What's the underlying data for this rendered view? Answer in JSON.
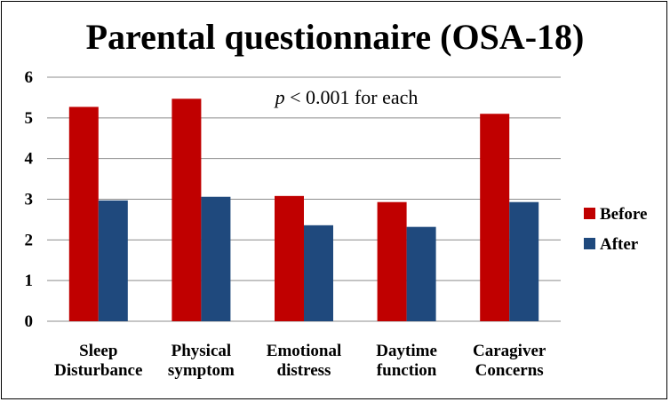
{
  "chart_data": {
    "type": "bar",
    "title": "Parental questionnaire (OSA-18)",
    "annotation": {
      "italic": "p",
      "rest": " < 0.001 for each"
    },
    "categories": [
      [
        "Sleep",
        "Disturbance"
      ],
      [
        "Physical",
        "symptom"
      ],
      [
        "Emotional",
        "distress"
      ],
      [
        "Daytime",
        "function"
      ],
      [
        "Caragiver",
        "Concerns"
      ]
    ],
    "series": [
      {
        "name": "Before",
        "color": "#c00000",
        "values": [
          5.27,
          5.47,
          3.08,
          2.93,
          5.1
        ]
      },
      {
        "name": "After",
        "color": "#1f497d",
        "values": [
          2.97,
          3.06,
          2.36,
          2.32,
          2.93
        ]
      }
    ],
    "ylim": [
      0,
      6
    ],
    "yticks": [
      "0",
      "1",
      "2",
      "3",
      "4",
      "5",
      "6"
    ],
    "grid": true,
    "legend": "right",
    "xlabel": "",
    "ylabel": ""
  }
}
